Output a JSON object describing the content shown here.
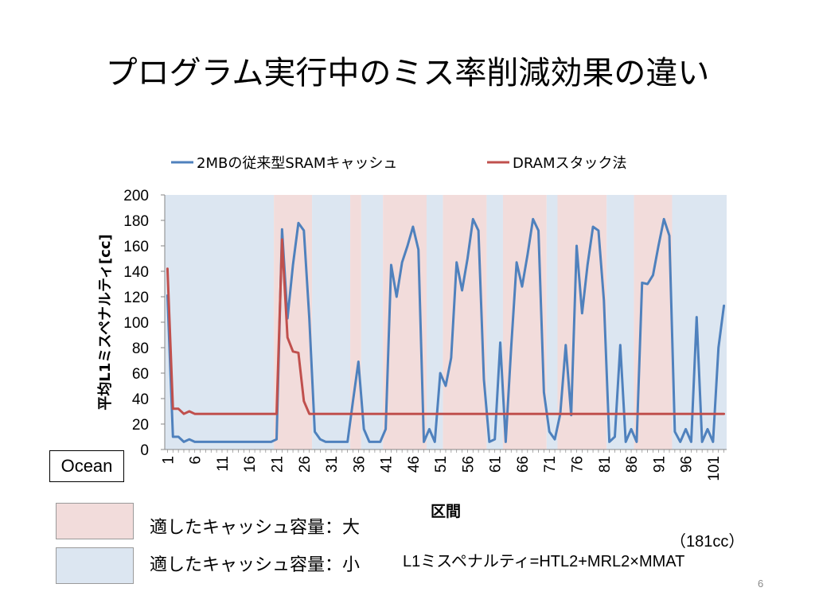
{
  "slide": {
    "title": "プログラム実行中のミス率削減効果の違い",
    "page_number": "6"
  },
  "colors": {
    "series_sram": "#4F81BD",
    "series_dram": "#C0504D",
    "band_large": "#F2DCDB",
    "band_small": "#DCE6F1",
    "axis": "#868686"
  },
  "ocean_label": "Ocean",
  "region_legend": {
    "large_label": "適したキャッシュ容量：大",
    "small_label": "適したキャッシュ容量：小"
  },
  "formula": {
    "note": "（181cc）",
    "prefix": "L1ミスペナルティ=HT",
    "sub1": "L2",
    "mid": "+MR",
    "sub2": "L2",
    "suffix": "×MMAT"
  },
  "chart_data": {
    "type": "line",
    "title": "",
    "xlabel": "区間",
    "ylabel": "平均L1ミスペナルティ[cc]",
    "ylim": [
      0,
      200
    ],
    "yticks": [
      0,
      20,
      40,
      60,
      80,
      100,
      120,
      140,
      160,
      180,
      200
    ],
    "x": [
      1,
      2,
      3,
      4,
      5,
      6,
      7,
      8,
      9,
      10,
      11,
      12,
      13,
      14,
      15,
      16,
      17,
      18,
      19,
      20,
      21,
      22,
      23,
      24,
      25,
      26,
      27,
      28,
      29,
      30,
      31,
      32,
      33,
      34,
      35,
      36,
      37,
      38,
      39,
      40,
      41,
      42,
      43,
      44,
      45,
      46,
      47,
      48,
      49,
      50,
      51,
      52,
      53,
      54,
      55,
      56,
      57,
      58,
      59,
      60,
      61,
      62,
      63,
      64,
      65,
      66,
      67,
      68,
      69,
      70,
      71,
      72,
      73,
      74,
      75,
      76,
      77,
      78,
      79,
      80,
      81,
      82,
      83,
      84,
      85,
      86,
      87,
      88,
      89,
      90,
      91,
      92,
      93,
      94,
      95,
      96,
      97,
      98,
      99,
      100,
      101,
      102,
      103
    ],
    "xtick_labels": [
      "1",
      "6",
      "11",
      "16",
      "21",
      "26",
      "31",
      "36",
      "41",
      "46",
      "51",
      "56",
      "61",
      "66",
      "71",
      "76",
      "81",
      "86",
      "91",
      "96",
      "101"
    ],
    "legend_position": "top",
    "grid": false,
    "series": [
      {
        "name": "2MBの従来型SRAMキャッシュ",
        "color": "#4F81BD",
        "values": [
          121,
          10,
          10,
          6,
          8,
          6,
          6,
          6,
          6,
          6,
          6,
          6,
          6,
          6,
          6,
          6,
          6,
          6,
          6,
          6,
          8,
          173,
          103,
          145,
          178,
          172,
          103,
          14,
          8,
          6,
          6,
          6,
          6,
          6,
          38,
          69,
          16,
          6,
          6,
          6,
          16,
          145,
          120,
          147,
          160,
          175,
          157,
          6,
          16,
          6,
          60,
          50,
          72,
          147,
          125,
          150,
          181,
          172,
          55,
          6,
          8,
          84,
          6,
          80,
          147,
          128,
          153,
          181,
          172,
          45,
          14,
          8,
          28,
          82,
          27,
          160,
          107,
          145,
          175,
          172,
          117,
          6,
          10,
          82,
          6,
          16,
          6,
          131,
          130,
          137,
          160,
          181,
          168,
          14,
          6,
          16,
          6,
          104,
          6,
          16,
          6,
          80,
          113
        ]
      },
      {
        "name": "DRAMスタック法",
        "color": "#C0504D",
        "values": [
          142,
          32,
          32,
          28,
          30,
          28,
          28,
          28,
          28,
          28,
          28,
          28,
          28,
          28,
          28,
          28,
          28,
          28,
          28,
          28,
          28,
          165,
          88,
          77,
          76,
          38,
          28,
          28,
          28,
          28,
          28,
          28,
          28,
          28,
          28,
          28,
          28,
          28,
          28,
          28,
          28,
          28,
          28,
          28,
          28,
          28,
          28,
          28,
          28,
          28,
          28,
          28,
          28,
          28,
          28,
          28,
          28,
          28,
          28,
          28,
          28,
          28,
          28,
          28,
          28,
          28,
          28,
          28,
          28,
          28,
          28,
          28,
          28,
          28,
          28,
          28,
          28,
          28,
          28,
          28,
          28,
          28,
          28,
          28,
          28,
          28,
          28,
          28,
          28,
          28,
          28,
          28,
          28,
          28,
          28,
          28,
          28,
          28,
          28,
          28,
          28,
          28,
          28
        ]
      }
    ],
    "bands": [
      {
        "kind": "small",
        "from": 0.5,
        "to": 20.5
      },
      {
        "kind": "large",
        "from": 20.5,
        "to": 27.5
      },
      {
        "kind": "small",
        "from": 27.5,
        "to": 34.5
      },
      {
        "kind": "large",
        "from": 34.5,
        "to": 36.5
      },
      {
        "kind": "small",
        "from": 36.5,
        "to": 40.5
      },
      {
        "kind": "large",
        "from": 40.5,
        "to": 48.5
      },
      {
        "kind": "small",
        "from": 48.5,
        "to": 51.5
      },
      {
        "kind": "large",
        "from": 51.5,
        "to": 59.5
      },
      {
        "kind": "small",
        "from": 59.5,
        "to": 62.5
      },
      {
        "kind": "large",
        "from": 62.5,
        "to": 70.5
      },
      {
        "kind": "small",
        "from": 70.5,
        "to": 72.5
      },
      {
        "kind": "large",
        "from": 72.5,
        "to": 81.5
      },
      {
        "kind": "small",
        "from": 81.5,
        "to": 86.5
      },
      {
        "kind": "large",
        "from": 86.5,
        "to": 93.5
      },
      {
        "kind": "small",
        "from": 93.5,
        "to": 103.5
      }
    ]
  }
}
